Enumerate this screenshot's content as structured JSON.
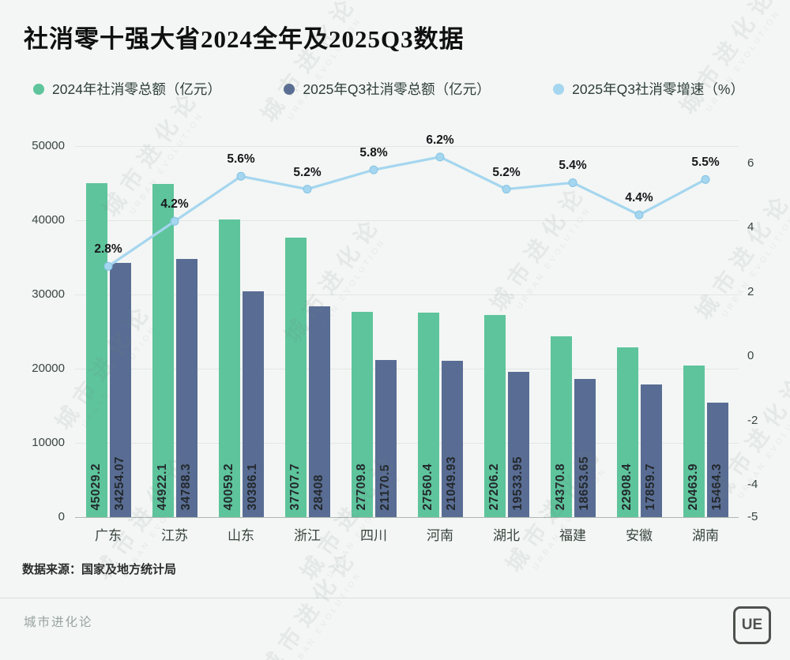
{
  "title": "社消零十强大省2024全年及2025Q3数据",
  "legend": [
    {
      "label": "2024年社消零总额（亿元）",
      "color": "#5ec49c"
    },
    {
      "label": "2025年Q3社消零总额（亿元）",
      "color": "#596d94"
    },
    {
      "label": "2025年Q3社消零增速（%）",
      "color": "#a5d6ef"
    }
  ],
  "chart_data": {
    "type": "bar+line",
    "title": "社消零十强大省2024全年及2025Q3数据",
    "categories": [
      "广东",
      "江苏",
      "山东",
      "浙江",
      "四川",
      "河南",
      "湖北",
      "福建",
      "安徽",
      "湖南"
    ],
    "series": [
      {
        "name": "2024年社消零总额（亿元）",
        "type": "bar",
        "axis": "left",
        "color": "#5ec49c",
        "values": [
          45029.2,
          44922.1,
          40059.2,
          37707.7,
          27709.8,
          27560.4,
          27206.2,
          24370.8,
          22908.4,
          20463.9
        ],
        "labels": [
          "45029.2",
          "44922.1",
          "40059.2",
          "37707.7",
          "27709.8",
          "27560.4",
          "27206.2",
          "24370.8",
          "22908.4",
          "20463.9"
        ]
      },
      {
        "name": "2025年Q3社消零总额（亿元）",
        "type": "bar",
        "axis": "left",
        "color": "#596d94",
        "values": [
          34254.07,
          34788.3,
          30386.1,
          28408,
          21170.5,
          21049.93,
          19533.95,
          18653.65,
          17859.7,
          15464.3
        ],
        "labels": [
          "34254.07",
          "34788.3",
          "30386.1",
          "28408",
          "21170.5",
          "21049.93",
          "19533.95",
          "18653.65",
          "17859.7",
          "15464.3"
        ]
      },
      {
        "name": "2025年Q3社消零增速（%）",
        "type": "line",
        "axis": "right",
        "color": "#a5d6ef",
        "values": [
          2.8,
          4.2,
          5.6,
          5.2,
          5.8,
          6.2,
          5.2,
          5.4,
          4.4,
          5.5
        ],
        "labels": [
          "2.8%",
          "4.2%",
          "5.6%",
          "5.2%",
          "5.8%",
          "6.2%",
          "5.2%",
          "5.4%",
          "4.4%",
          "5.5%"
        ]
      }
    ],
    "left_axis": {
      "min": 0,
      "max": 50000,
      "ticks": [
        0,
        10000,
        20000,
        30000,
        40000,
        50000
      ]
    },
    "right_axis": {
      "min": -5,
      "max": 6,
      "ticks": [
        6,
        4,
        2,
        0,
        -2,
        -4,
        -5
      ]
    },
    "grid": true,
    "legend_position": "top"
  },
  "source": "数据来源：国家及地方统计局",
  "footer": {
    "brand": "城市进化论",
    "logo": "UE"
  },
  "watermark": {
    "line1": "城市进化论",
    "line2": "URBAN EVOLUTION"
  }
}
